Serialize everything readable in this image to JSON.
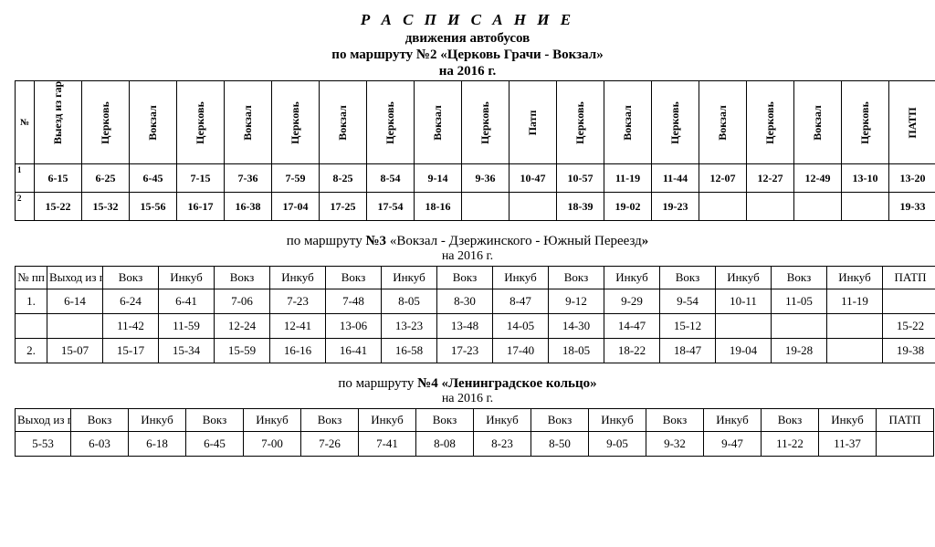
{
  "header": {
    "title": "Р А С П И С А Н И Е",
    "subtitle1": "движения автобусов",
    "subtitle2_pre": "по маршруту №2 «",
    "subtitle2_bold": "Церковь Грачи - Вокзал",
    "subtitle2_post": "»",
    "year": "на 2016 г."
  },
  "route2": {
    "num_label": "№",
    "headers": [
      "Выезд из гаража",
      "Церковь",
      "Вокзал",
      "Церковь",
      "Вокзал",
      "Церковь",
      "Вокзал",
      "Церковь",
      "Вокзал",
      "Церковь",
      "Патп",
      "Церковь",
      "Вокзал",
      "Церковь",
      "Вокзал",
      "Церковь",
      "Вокзал",
      "Церковь",
      "ПАТП"
    ],
    "rows": [
      {
        "n": "1",
        "cells": [
          "6-15",
          "6-25",
          "6-45",
          "7-15",
          "7-36",
          "7-59",
          "8-25",
          "8-54",
          "9-14",
          "9-36",
          "10-47",
          "10-57",
          "11-19",
          "11-44",
          "12-07",
          "12-27",
          "12-49",
          "13-10",
          "13-20"
        ]
      },
      {
        "n": "2",
        "cells": [
          "15-22",
          "15-32",
          "15-56",
          "16-17",
          "16-38",
          "17-04",
          "17-25",
          "17-54",
          "18-16",
          "",
          "",
          "18-39",
          "19-02",
          "19-23",
          "",
          "",
          "",
          "",
          "19-33"
        ]
      }
    ]
  },
  "route3": {
    "title_pre": "по маршруту ",
    "title_num": "№3",
    "title_mid": " «Вокзал - Дзержинского   -    Южный Переезд",
    "title_post": "»",
    "year": "на 2016 г.",
    "headers": [
      "№ пп",
      "Выход из гар",
      "Вокз",
      "Инкуб",
      "Вокз",
      "Инкуб",
      "Вокз",
      "Инкуб",
      "Вокз",
      "Инкуб",
      "Вокз",
      "Инкуб",
      "Вокз",
      "Инкуб",
      "Вокз",
      "Инкуб",
      "ПАТП"
    ],
    "rows": [
      [
        "1.",
        "6-14",
        "6-24",
        "6-41",
        "7-06",
        "7-23",
        "7-48",
        "8-05",
        "8-30",
        "8-47",
        "9-12",
        "9-29",
        "9-54",
        "10-11",
        "11-05",
        "11-19",
        ""
      ],
      [
        "",
        "",
        "11-42",
        "11-59",
        "12-24",
        "12-41",
        "13-06",
        "13-23",
        "13-48",
        "14-05",
        "14-30",
        "14-47",
        "15-12",
        "",
        "",
        "",
        "15-22"
      ],
      [
        "2.",
        "15-07",
        "15-17",
        "15-34",
        "15-59",
        "16-16",
        "16-41",
        "16-58",
        "17-23",
        "17-40",
        "18-05",
        "18-22",
        "18-47",
        "19-04",
        "19-28",
        "",
        "19-38"
      ]
    ]
  },
  "route4": {
    "title_pre": "по маршруту ",
    "title_num": "№4 «Ленинградское кольцо»",
    "year": "на 2016 г.",
    "headers": [
      "Выход из гар",
      "Вокз",
      "Инкуб",
      "Вокз",
      "Инкуб",
      "Вокз",
      "Инкуб",
      "Вокз",
      "Инкуб",
      "Вокз",
      "Инкуб",
      "Вокз",
      "Инкуб",
      "Вокз",
      "Инкуб",
      "ПАТП"
    ],
    "rows": [
      [
        "5-53",
        "6-03",
        "6-18",
        "6-45",
        "7-00",
        "7-26",
        "7-41",
        "8-08",
        "8-23",
        "8-50",
        "9-05",
        "9-32",
        "9-47",
        "11-22",
        "11-37",
        ""
      ]
    ]
  }
}
